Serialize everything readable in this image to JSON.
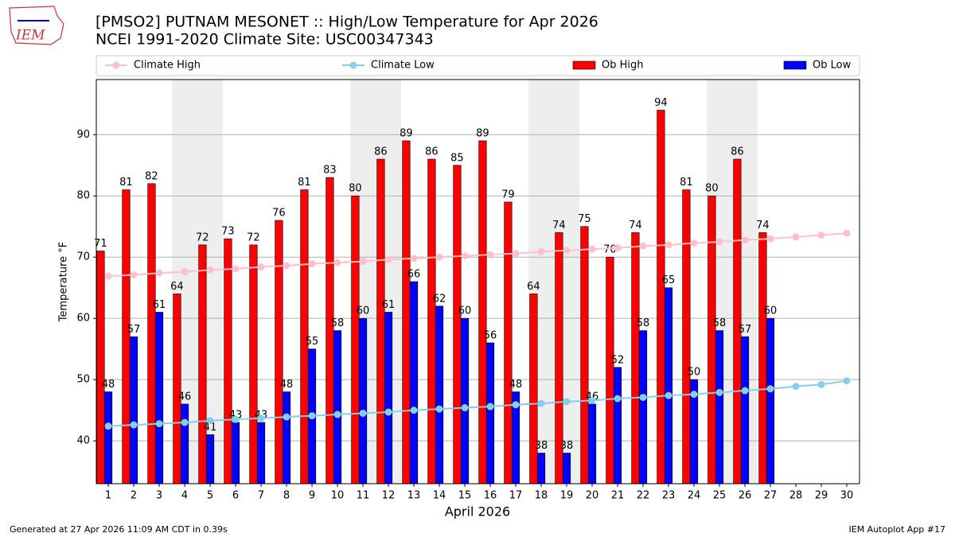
{
  "chart_data": {
    "type": "bar",
    "title": "[PMSO2] PUTNAM MESONET :: High/Low Temperature for Apr 2026",
    "subtitle": "NCEI 1991-2020 Climate Site: USC00347343",
    "logo_text": "IEM",
    "xlabel": "April 2026",
    "ylabel": "Temperature °F",
    "x": [
      1,
      2,
      3,
      4,
      5,
      6,
      7,
      8,
      9,
      10,
      11,
      12,
      13,
      14,
      15,
      16,
      17,
      18,
      19,
      20,
      21,
      22,
      23,
      24,
      25,
      26,
      27,
      28,
      29,
      30
    ],
    "xlim": [
      0.53,
      30.5
    ],
    "xticks": [
      1,
      2,
      3,
      4,
      5,
      6,
      7,
      8,
      9,
      10,
      11,
      12,
      13,
      14,
      15,
      16,
      17,
      18,
      19,
      20,
      21,
      22,
      23,
      24,
      25,
      26,
      27,
      28,
      29,
      30
    ],
    "ylim": [
      33,
      99
    ],
    "yticks": [
      40,
      50,
      60,
      70,
      80,
      90
    ],
    "grid": true,
    "shade": [
      [
        3.5,
        5.5
      ],
      [
        10.5,
        12.5
      ],
      [
        17.5,
        19.5
      ],
      [
        24.5,
        26.5
      ]
    ],
    "shade_color": "#eeeeee",
    "series": [
      {
        "name": "Climate High",
        "type": "line",
        "color": "#ffc0cb",
        "values": [
          66.9,
          67.1,
          67.4,
          67.6,
          67.9,
          68.1,
          68.4,
          68.6,
          68.9,
          69.1,
          69.3,
          69.6,
          69.8,
          70.0,
          70.2,
          70.4,
          70.6,
          70.9,
          71.1,
          71.3,
          71.5,
          71.8,
          72.0,
          72.3,
          72.5,
          72.8,
          73.0,
          73.3,
          73.6,
          73.9
        ]
      },
      {
        "name": "Climate Low",
        "type": "line",
        "color": "#87ceeb",
        "values": [
          42.4,
          42.6,
          42.8,
          43.0,
          43.3,
          43.5,
          43.7,
          43.9,
          44.1,
          44.3,
          44.5,
          44.7,
          45.0,
          45.2,
          45.4,
          45.6,
          45.9,
          46.1,
          46.4,
          46.6,
          46.9,
          47.1,
          47.4,
          47.6,
          47.9,
          48.2,
          48.5,
          48.9,
          49.2,
          49.8
        ]
      },
      {
        "name": "Ob High",
        "type": "bar",
        "color": "#ff0000",
        "values": [
          71,
          81,
          82,
          64,
          72,
          73,
          72,
          76,
          81,
          83,
          80,
          86,
          89,
          86,
          85,
          89,
          79,
          64,
          74,
          75,
          70,
          74,
          94,
          81,
          80,
          86,
          74,
          null,
          null,
          null
        ]
      },
      {
        "name": "Ob Low",
        "type": "bar",
        "color": "#0000ff",
        "values": [
          48,
          57,
          61,
          46,
          41,
          43,
          43,
          48,
          55,
          58,
          60,
          61,
          66,
          62,
          60,
          56,
          48,
          38,
          38,
          46,
          52,
          58,
          65,
          50,
          58,
          57,
          60,
          null,
          null,
          null
        ]
      }
    ],
    "footer_left": "Generated at 27 Apr 2026 11:09 AM CDT in 0.39s",
    "footer_right": "IEM Autoplot App #17"
  }
}
